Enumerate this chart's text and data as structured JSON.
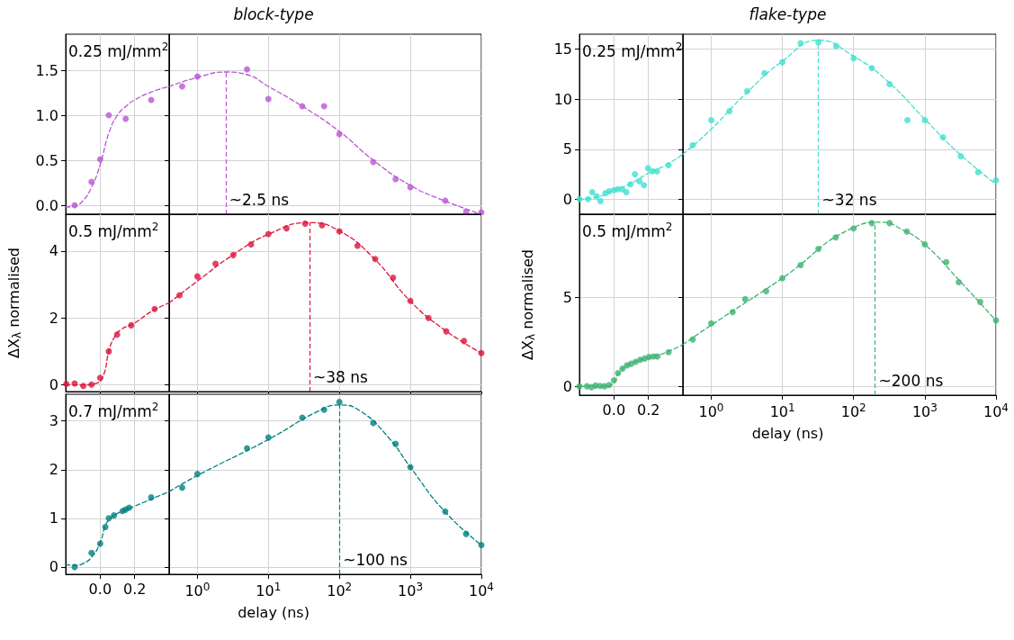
{
  "chart_data": [
    {
      "type": "scatter",
      "annotations": [
        "0.25 mJ/mm$^{2}$"
      ],
      "xlim": [
        -0.2,
        0.4
      ],
      "xticks": [
        0,
        0.2
      ],
      "ylim": [
        -0.1,
        1.9
      ],
      "yticks": [
        {
          "value": 0,
          "label": "0.0"
        },
        0.5,
        {
          "value": 1,
          "label": "1.0"
        },
        1.5
      ],
      "grid": true,
      "tick_labels": "y",
      "series": [
        {
          "color": "#ba55d3",
          "marker": "circle",
          "x": [
            -0.148,
            -0.05,
            0.0,
            0.05,
            0.148,
            0.296
          ],
          "values": [
            0.0,
            0.26,
            0.51,
            1.0,
            0.96,
            1.17
          ]
        },
        {
          "type": "line",
          "color": "#ba55d3",
          "marker": "none",
          "line_style": "dashed",
          "x": [
            -0.2,
            -0.15,
            -0.1,
            -0.05,
            0,
            0.05,
            0.1,
            0.15,
            0.2,
            0.3,
            0.4
          ],
          "values": [
            -0.02,
            -0.01,
            0.05,
            0.2,
            0.45,
            0.8,
            1.0,
            1.1,
            1.17,
            1.26,
            1.32
          ]
        }
      ]
    },
    {
      "type": "scatter",
      "title": "block-type",
      "log": "x",
      "xlim": [
        0.4,
        10000
      ],
      "xticks": [
        1,
        10,
        100,
        1000,
        10000
      ],
      "ylim": [
        -0.1,
        1.9
      ],
      "yticks": [
        0,
        0.5,
        1,
        1.5
      ],
      "grid": true,
      "tick_labels": false,
      "ref_lines": [
        {
          "axis": "x",
          "value": 2.5,
          "label": "~2.5 ns",
          "color": "#ba55d3",
          "line_style": "dashed"
        }
      ],
      "series": [
        {
          "color": "#ba55d3",
          "marker": "circle",
          "x": [
            0.61,
            1.0,
            5.0,
            10,
            30,
            61,
            100,
            300,
            620,
            1000,
            3100,
            6100,
            10000
          ],
          "values": [
            1.32,
            1.43,
            1.51,
            1.18,
            1.1,
            1.1,
            0.79,
            0.48,
            0.29,
            0.2,
            0.05,
            -0.07,
            -0.08
          ]
        },
        {
          "type": "line",
          "color": "#ba55d3",
          "marker": "none",
          "line_style": "dashed",
          "x": [
            0.4,
            1,
            2.5,
            5,
            10,
            30,
            100,
            300,
            1000,
            3000,
            10000
          ],
          "values": [
            1.32,
            1.42,
            1.48,
            1.45,
            1.32,
            1.1,
            0.82,
            0.5,
            0.22,
            0.05,
            -0.1
          ]
        }
      ]
    },
    {
      "type": "scatter",
      "annotations": [
        "0.25 mJ/mm$^{2}$"
      ],
      "xlim": [
        -0.2,
        0.4
      ],
      "xticks": [
        0,
        0.2
      ],
      "ylim": [
        -1.5,
        16.5
      ],
      "yticks": [
        0,
        5,
        10,
        15
      ],
      "grid": true,
      "tick_labels": "y",
      "series": [
        {
          "color": "#40e0d0",
          "marker": "circle",
          "x": [
            -0.2,
            -0.15,
            -0.126,
            -0.1,
            -0.078,
            -0.05,
            -0.028,
            0.0,
            0.022,
            0.048,
            0.072,
            0.096,
            0.122,
            0.148,
            0.174,
            0.198,
            0.224,
            0.25,
            0.317
          ],
          "values": [
            0,
            0,
            0.7,
            0.3,
            -0.2,
            0.6,
            0.8,
            0.9,
            1.0,
            1.0,
            0.7,
            1.5,
            2.5,
            1.8,
            1.4,
            3.1,
            2.8,
            2.8,
            3.4
          ]
        },
        {
          "type": "line",
          "color": "#40e0d0",
          "marker": "none",
          "line_style": "dashed",
          "x": [
            -0.2,
            -0.1,
            0,
            0.1,
            0.2,
            0.3,
            0.4
          ],
          "values": [
            0,
            0.2,
            0.9,
            1.6,
            2.6,
            3.4,
            4.5
          ]
        }
      ]
    },
    {
      "type": "scatter",
      "title": "flake-type",
      "log": "x",
      "xlim": [
        0.4,
        10000
      ],
      "xticks": [
        1,
        10,
        100,
        1000,
        10000
      ],
      "ylim": [
        -1.5,
        16.5
      ],
      "yticks": [
        0,
        5,
        10,
        15
      ],
      "grid": true,
      "tick_labels": false,
      "ref_lines": [
        {
          "axis": "x",
          "value": 32,
          "label": "~32 ns",
          "color": "#40e0d0",
          "line_style": "dashed"
        }
      ],
      "series": [
        {
          "color": "#40e0d0",
          "marker": "circle",
          "x": [
            0.55,
            1.0,
            1.8,
            3.2,
            5.6,
            10,
            18,
            32,
            57,
            100,
            180,
            320,
            570,
            1000,
            1800,
            3200,
            5600,
            10000
          ],
          "values": [
            5.4,
            7.9,
            8.8,
            10.8,
            12.6,
            13.7,
            15.6,
            15.7,
            15.3,
            14.1,
            13.1,
            11.5,
            7.9,
            7.9,
            6.2,
            4.3,
            2.7,
            1.9
          ]
        },
        {
          "type": "line",
          "color": "#40e0d0",
          "marker": "none",
          "line_style": "dashed",
          "x": [
            0.4,
            1,
            3,
            10,
            32,
            100,
            300,
            1000,
            3000,
            10000
          ],
          "values": [
            4.5,
            7,
            10.5,
            13.8,
            15.9,
            14.3,
            11.8,
            8,
            4.6,
            1.5
          ]
        }
      ]
    },
    {
      "type": "scatter",
      "ylabel": "ΔX$_{λ}$ normalised",
      "annotations": [
        "0.5 mJ/mm$^{2}$"
      ],
      "xlim": [
        -0.2,
        0.4
      ],
      "xticks": [
        0,
        0.2
      ],
      "ylim": [
        -0.2,
        5.1
      ],
      "yticks": [
        0,
        2,
        4
      ],
      "grid": true,
      "tick_labels": "y",
      "series": [
        {
          "color": "#dc143c",
          "marker": "circle",
          "x": [
            -0.196,
            -0.148,
            -0.098,
            -0.05,
            0,
            0.05,
            0.098,
            0.18,
            0.316
          ],
          "values": [
            0.03,
            0.04,
            -0.03,
            0.01,
            0.21,
            1.0,
            1.5,
            1.78,
            2.27
          ]
        },
        {
          "type": "line",
          "color": "#dc143c",
          "marker": "none",
          "line_style": "dashed",
          "x": [
            -0.2,
            -0.1,
            -0.02,
            0.02,
            0.05,
            0.08,
            0.12,
            0.2,
            0.3,
            0.4
          ],
          "values": [
            0,
            0,
            0.05,
            0.3,
            1.0,
            1.4,
            1.65,
            1.85,
            2.2,
            2.45
          ]
        }
      ]
    },
    {
      "type": "scatter",
      "log": "x",
      "xlim": [
        0.4,
        10000
      ],
      "xticks": [
        1,
        10,
        100,
        1000,
        10000
      ],
      "ylim": [
        -0.2,
        5.1
      ],
      "yticks": [
        0,
        2,
        4
      ],
      "grid": true,
      "tick_labels": false,
      "ref_lines": [
        {
          "axis": "x",
          "value": 38,
          "label": "~38 ns",
          "color": "#dc143c",
          "line_style": "dashed"
        }
      ],
      "series": [
        {
          "color": "#dc143c",
          "marker": "circle",
          "x": [
            0.56,
            1.0,
            1.8,
            3.2,
            5.7,
            10,
            18,
            33,
            57,
            100,
            180,
            320,
            570,
            1000,
            1800,
            3200,
            5700,
            10000
          ],
          "values": [
            2.68,
            3.24,
            3.62,
            3.88,
            4.2,
            4.51,
            4.68,
            4.82,
            4.77,
            4.59,
            4.16,
            3.76,
            3.2,
            2.51,
            2.0,
            1.6,
            1.31,
            0.95
          ]
        },
        {
          "type": "line",
          "color": "#dc143c",
          "marker": "none",
          "line_style": "dashed",
          "x": [
            0.4,
            1,
            3,
            10,
            38,
            100,
            300,
            1000,
            3000,
            10000
          ],
          "values": [
            2.45,
            3.1,
            3.85,
            4.5,
            4.85,
            4.6,
            3.8,
            2.5,
            1.65,
            0.95
          ]
        }
      ]
    },
    {
      "type": "scatter",
      "ylabel": "ΔX$_{λ}$ normalised",
      "annotations": [
        "0.5 mJ/mm$^{2}$"
      ],
      "xlim": [
        -0.2,
        0.4
      ],
      "xticks": [
        {
          "value": 0,
          "label": "0.0"
        },
        {
          "value": 0.2,
          "label": "0.2"
        }
      ],
      "ylim": [
        -0.5,
        9.7
      ],
      "yticks": [
        0,
        5
      ],
      "grid": true,
      "series": [
        {
          "color": "#3cb371",
          "marker": "circle",
          "x": [
            -0.2,
            -0.156,
            -0.13,
            -0.106,
            -0.08,
            -0.054,
            -0.028,
            0,
            0.024,
            0.05,
            0.076,
            0.1,
            0.126,
            0.152,
            0.178,
            0.204,
            0.23,
            0.252,
            0.317
          ],
          "values": [
            0,
            0,
            -0.05,
            0.04,
            0.02,
            0,
            0.07,
            0.34,
            0.74,
            1.0,
            1.18,
            1.27,
            1.38,
            1.49,
            1.56,
            1.65,
            1.68,
            1.68,
            1.92
          ]
        },
        {
          "type": "line",
          "color": "#3cb371",
          "marker": "none",
          "line_style": "dashed",
          "x": [
            -0.2,
            -0.05,
            0,
            0.03,
            0.1,
            0.2,
            0.3,
            0.4
          ],
          "values": [
            0,
            0,
            0.2,
            0.8,
            1.3,
            1.6,
            1.9,
            2.35
          ]
        }
      ]
    },
    {
      "type": "scatter",
      "xlabel": "delay (ns)",
      "log": "x",
      "xlim": [
        0.4,
        10000
      ],
      "xticks": [
        {
          "value": 1,
          "label": "10$^{0}$"
        },
        {
          "value": 10,
          "label": "10$^{1}$"
        },
        {
          "value": 100,
          "label": "10$^{2}$"
        },
        {
          "value": 1000,
          "label": "10$^{3}$"
        },
        {
          "value": 10000,
          "label": "10$^{4}$"
        }
      ],
      "ylim": [
        -0.5,
        9.7
      ],
      "yticks": [
        0,
        5
      ],
      "grid": true,
      "tick_labels": "x",
      "ref_lines": [
        {
          "axis": "x",
          "value": 200,
          "label": "~200 ns",
          "color": "#3cb371",
          "line_style": "dashed"
        }
      ],
      "series": [
        {
          "color": "#3cb371",
          "marker": "circle",
          "x": [
            0.55,
            1.0,
            2,
            3,
            5.9,
            10,
            18,
            32,
            56,
            100,
            180,
            320,
            560,
            1000,
            2000,
            3000,
            6000,
            10000
          ],
          "values": [
            2.64,
            3.55,
            4.18,
            4.91,
            5.36,
            6.1,
            6.83,
            7.75,
            8.39,
            8.9,
            9.2,
            9.2,
            8.72,
            8.0,
            7.0,
            5.87,
            4.76,
            3.71
          ]
        },
        {
          "type": "line",
          "color": "#3cb371",
          "marker": "none",
          "line_style": "dashed",
          "x": [
            0.4,
            1,
            10,
            100,
            240,
            500,
            1000,
            3000,
            10000
          ],
          "values": [
            2.35,
            3.45,
            6.1,
            8.95,
            9.25,
            8.8,
            8.0,
            6.0,
            3.7
          ]
        }
      ]
    },
    {
      "type": "scatter",
      "annotations": [
        "0.7 mJ/mm$^{2}$"
      ],
      "xlim": [
        -0.2,
        0.4
      ],
      "xticks": [
        {
          "value": 0,
          "label": "0.0"
        },
        {
          "value": 0.2,
          "label": "0.2"
        }
      ],
      "ylim": [
        -0.15,
        3.55
      ],
      "yticks": [
        0,
        1,
        2,
        3
      ],
      "grid": true,
      "series": [
        {
          "color": "#008080",
          "marker": "circle",
          "x": [
            -0.148,
            -0.05,
            0,
            0.03,
            0.05,
            0.08,
            0.13,
            0.148,
            0.168,
            0.296
          ],
          "values": [
            0.0,
            0.29,
            0.48,
            0.82,
            1.0,
            1.06,
            1.15,
            1.18,
            1.22,
            1.43
          ]
        },
        {
          "type": "line",
          "color": "#008080",
          "marker": "none",
          "line_style": "dashed",
          "x": [
            -0.2,
            -0.15,
            -0.1,
            -0.05,
            0,
            0.03,
            0.06,
            0.1,
            0.2,
            0.3,
            0.4
          ],
          "values": [
            0.05,
            0.03,
            0.07,
            0.2,
            0.5,
            0.85,
            1.0,
            1.1,
            1.25,
            1.4,
            1.55
          ]
        }
      ]
    },
    {
      "type": "scatter",
      "xlabel": "delay (ns)",
      "log": "x",
      "xlim": [
        0.4,
        10000
      ],
      "xticks": [
        {
          "value": 1,
          "label": "10$^{0}$"
        },
        {
          "value": 10,
          "label": "10$^{1}$"
        },
        {
          "value": 100,
          "label": "10$^{2}$"
        },
        {
          "value": 1000,
          "label": "10$^{3}$"
        },
        {
          "value": 10000,
          "label": "10$^{4}$"
        }
      ],
      "ylim": [
        -0.15,
        3.55
      ],
      "yticks": [
        0,
        1,
        2,
        3
      ],
      "grid": true,
      "tick_labels": "x",
      "ref_lines": [
        {
          "axis": "x",
          "value": 100,
          "label": "~100 ns",
          "color": "#008080",
          "line_style": "dashed"
        }
      ],
      "series": [
        {
          "color": "#008080",
          "marker": "circle",
          "x": [
            0.61,
            1,
            5.0,
            10,
            30,
            61,
            100,
            300,
            620,
            1000,
            3100,
            6100,
            10000
          ],
          "values": [
            1.63,
            1.91,
            2.44,
            2.66,
            3.07,
            3.23,
            3.39,
            2.96,
            2.53,
            2.05,
            1.14,
            0.68,
            0.45
          ]
        },
        {
          "type": "line",
          "color": "#008080",
          "marker": "none",
          "line_style": "dashed",
          "x": [
            0.4,
            1,
            10,
            50,
            100,
            200,
            500,
            1000,
            3000,
            10000
          ],
          "values": [
            1.55,
            1.88,
            2.62,
            3.2,
            3.33,
            3.2,
            2.65,
            2.05,
            1.15,
            0.45
          ]
        }
      ]
    }
  ]
}
